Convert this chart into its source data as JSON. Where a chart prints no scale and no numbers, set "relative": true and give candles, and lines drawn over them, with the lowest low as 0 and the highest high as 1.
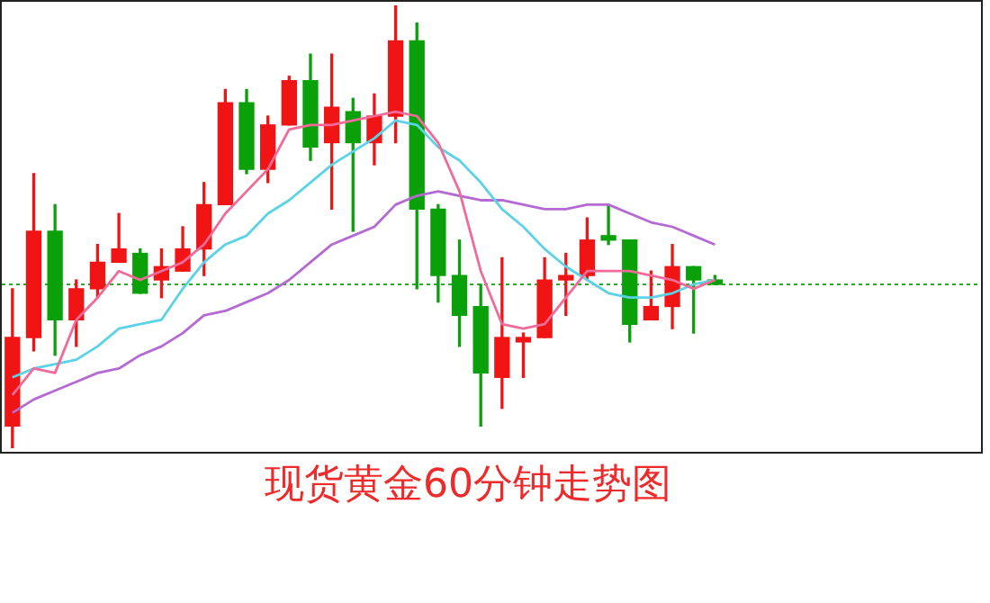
{
  "chart_data": {
    "type": "candlestick",
    "title": "现货黄金60分钟走势图",
    "relative": true,
    "legend": false,
    "categories": [
      null,
      null,
      null,
      null,
      null,
      null,
      null,
      null,
      null,
      null,
      null,
      null,
      null,
      null,
      null,
      null,
      null,
      null,
      null,
      null,
      null,
      null,
      null,
      null,
      null,
      null,
      null,
      null,
      null,
      null,
      null,
      null,
      null,
      null,
      null,
      null,
      null,
      null,
      null,
      null,
      null,
      null,
      null,
      null,
      null,
      null
    ],
    "ohlc": [
      [
        0.05,
        0.36,
        0,
        0.25
      ],
      [
        0.25,
        0.62,
        0.22,
        0.49
      ],
      [
        0.49,
        0.55,
        0.21,
        0.29
      ],
      [
        0.29,
        0.38,
        0.23,
        0.36
      ],
      [
        0.36,
        0.46,
        0.34,
        0.42
      ],
      [
        0.42,
        0.53,
        0.42,
        0.45
      ],
      [
        0.44,
        0.45,
        0.35,
        0.35
      ],
      [
        0.38,
        0.45,
        0.34,
        0.41
      ],
      [
        0.4,
        0.5,
        0.4,
        0.45
      ],
      [
        0.45,
        0.6,
        0.39,
        0.55
      ],
      [
        0.55,
        0.81,
        0.55,
        0.78
      ],
      [
        0.78,
        0.81,
        0.62,
        0.63
      ],
      [
        0.63,
        0.75,
        0.6,
        0.73
      ],
      [
        0.73,
        0.84,
        0.73,
        0.83
      ],
      [
        0.83,
        0.89,
        0.65,
        0.68
      ],
      [
        0.69,
        0.89,
        0.54,
        0.77
      ],
      [
        0.76,
        0.79,
        0.49,
        0.69
      ],
      [
        0.69,
        0.8,
        0.64,
        0.75
      ],
      [
        0.75,
        1,
        0.69,
        0.92
      ],
      [
        0.92,
        0.96,
        0.36,
        0.54
      ],
      [
        0.54,
        0.55,
        0.33,
        0.39
      ],
      [
        0.39,
        0.47,
        0.23,
        0.3
      ],
      [
        0.32,
        0.37,
        0.05,
        0.17
      ],
      [
        0.16,
        0.43,
        0.09,
        0.25
      ],
      [
        0.24,
        0.26,
        0.16,
        0.25
      ],
      [
        0.25,
        0.43,
        0.25,
        0.38
      ],
      [
        0.38,
        0.44,
        0.3,
        0.39
      ],
      [
        0.39,
        0.52,
        0.38,
        0.47
      ],
      [
        0.48,
        0.55,
        0.46,
        0.47
      ],
      [
        0.47,
        0.47,
        0.24,
        0.28
      ],
      [
        0.29,
        0.4,
        0.29,
        0.32
      ],
      [
        0.32,
        0.46,
        0.27,
        0.41
      ],
      [
        0.41,
        0.41,
        0.26,
        0.38
      ],
      [
        0.38,
        0.39,
        0.37,
        0.37
      ],
      null,
      null,
      null,
      null,
      null,
      null,
      null,
      null,
      null,
      null,
      null,
      null
    ],
    "colors": [
      "#f01414",
      "#f01414",
      "#0aa00a",
      "#f01414",
      "#f01414",
      "#f01414",
      "#0aa00a",
      "#f01414",
      "#f01414",
      "#f01414",
      "#f01414",
      "#0aa00a",
      "#f01414",
      "#f01414",
      "#0aa00a",
      "#f01414",
      "#0aa00a",
      "#f01414",
      "#f01414",
      "#0aa00a",
      "#0aa00a",
      "#0aa00a",
      "#0aa00a",
      "#f01414",
      "#f01414",
      "#f01414",
      "#f01414",
      "#f01414",
      "#0aa00a",
      "#0aa00a",
      "#f01414",
      "#f01414",
      "#0aa00a",
      "#0aa00a",
      null,
      null,
      null,
      null,
      null,
      null,
      null,
      null,
      null,
      null,
      null,
      null
    ],
    "series": [
      {
        "type": "line",
        "color": "#f06a9a",
        "values": [
          0.12,
          0.18,
          0.17,
          0.29,
          0.34,
          0.4,
          0.38,
          0.4,
          0.42,
          0.46,
          0.53,
          0.58,
          0.63,
          0.72,
          0.73,
          0.73,
          0.74,
          0.75,
          0.76,
          0.75,
          0.69,
          0.58,
          0.4,
          0.28,
          0.27,
          0.28,
          0.34,
          0.4,
          0.4,
          0.4,
          0.39,
          0.38,
          0.36,
          0.38,
          null,
          null,
          null,
          null,
          null,
          null,
          null,
          null,
          null,
          null,
          null,
          null
        ]
      },
      {
        "type": "line",
        "color": "#5cd2e6",
        "values": [
          0.16,
          0.18,
          0.19,
          0.2,
          0.23,
          0.27,
          0.28,
          0.29,
          0.36,
          0.42,
          0.46,
          0.48,
          0.53,
          0.56,
          0.6,
          0.64,
          0.67,
          0.7,
          0.74,
          0.73,
          0.68,
          0.65,
          0.6,
          0.54,
          0.5,
          0.45,
          0.41,
          0.38,
          0.35,
          0.34,
          0.34,
          0.35,
          0.37,
          0.38,
          null,
          null,
          null,
          null,
          null,
          null,
          null,
          null,
          null,
          null,
          null,
          null
        ]
      },
      {
        "type": "line",
        "color": "#b46ad2",
        "values": [
          0.08,
          0.11,
          0.13,
          0.15,
          0.17,
          0.18,
          0.21,
          0.23,
          0.26,
          0.3,
          0.31,
          0.33,
          0.35,
          0.38,
          0.42,
          0.46,
          0.48,
          0.5,
          0.55,
          0.57,
          0.58,
          0.57,
          0.56,
          0.56,
          0.55,
          0.54,
          0.54,
          0.55,
          0.55,
          0.53,
          0.51,
          0.5,
          0.48,
          0.46,
          null,
          null,
          null,
          null,
          null,
          null,
          null,
          null,
          null,
          null,
          null,
          null
        ]
      }
    ],
    "ref_lines": [
      {
        "axis": "y",
        "value": 0.37,
        "color": "#2aaa2a",
        "line_style": "dotted"
      }
    ]
  }
}
